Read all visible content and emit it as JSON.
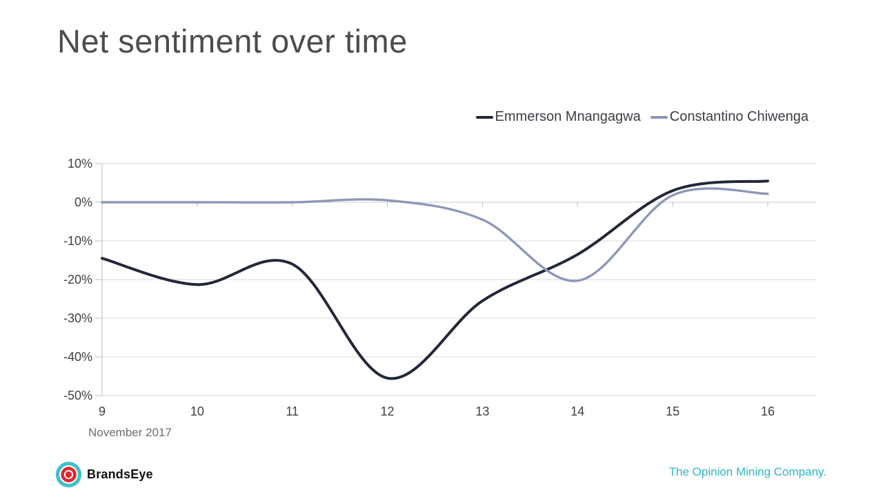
{
  "page": {
    "title": "Net sentiment over time"
  },
  "chart_data": {
    "type": "line",
    "title": "Net sentiment over time",
    "x_axis_title": "November 2017",
    "categories": [
      "9",
      "10",
      "11",
      "12",
      "13",
      "14",
      "15",
      "16"
    ],
    "y_tick_labels": [
      "10%",
      "0%",
      "-10%",
      "-20%",
      "-30%",
      "-40%",
      "-50%"
    ],
    "y_tick_values": [
      10,
      0,
      -10,
      -20,
      -30,
      -40,
      -50
    ],
    "ylim": [
      -50,
      10
    ],
    "y_unit": "percent",
    "grid": true,
    "smoothed": true,
    "legend_position": "top-right",
    "gridline_color": "#d9d9d9",
    "zero_line_color": "#c9c9c9",
    "axis_color": "#b9b9b9",
    "series": [
      {
        "name": "Emmerson Mnangagwa",
        "color": "#232838",
        "width": 4,
        "values": [
          -14.5,
          -21.3,
          -16,
          -45.5,
          -25.5,
          -13.5,
          3,
          5.5
        ]
      },
      {
        "name": "Constantino Chiwenga",
        "color": "#8d97b7",
        "width": 3.4,
        "values": [
          0,
          0,
          0,
          0.5,
          -4.5,
          -20.3,
          1.8,
          2.2
        ]
      }
    ]
  },
  "footer": {
    "brand": "BrandsEye",
    "tagline": "The Opinion Mining Company.",
    "tagline_color": "#2bb7c6",
    "logo": {
      "icon": "bullseye-icon",
      "teal": "#3fc0ca",
      "red": "#e4252c"
    }
  }
}
